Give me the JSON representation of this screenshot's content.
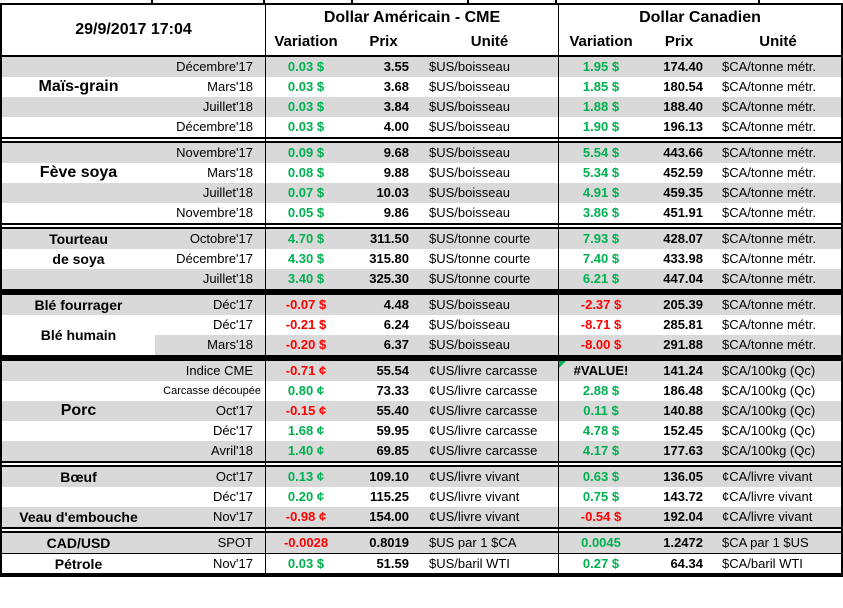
{
  "meta": {
    "timestamp": "29/9/2017 17:04"
  },
  "header": {
    "us_title": "Dollar Américain - CME",
    "ca_title": "Dollar Canadien",
    "col_variation": "Variation",
    "col_prix": "Prix",
    "col_unite": "Unité"
  },
  "colors": {
    "green": "#00B050",
    "red": "#FF0000",
    "band": "#D9D9D9"
  },
  "groups": [
    {
      "rows": [
        {
          "cat": "",
          "month": "Décembre'17",
          "shade": true,
          "us": {
            "var": "0.03 $",
            "dir": "up",
            "prix": "3.55",
            "unit": "$US/boisseau"
          },
          "ca": {
            "var": "1.95 $",
            "dir": "up",
            "prix": "174.40",
            "unit": "$CA/tonne métr."
          }
        },
        {
          "cat": "Maïs-grain",
          "cat_size": "lg",
          "month": "Mars'18",
          "shade": false,
          "us": {
            "var": "0.03 $",
            "dir": "up",
            "prix": "3.68",
            "unit": "$US/boisseau"
          },
          "ca": {
            "var": "1.85 $",
            "dir": "up",
            "prix": "180.54",
            "unit": "$CA/tonne métr."
          }
        },
        {
          "cat": "",
          "month": "Juillet'18",
          "shade": true,
          "us": {
            "var": "0.03 $",
            "dir": "up",
            "prix": "3.84",
            "unit": "$US/boisseau"
          },
          "ca": {
            "var": "1.88 $",
            "dir": "up",
            "prix": "188.40",
            "unit": "$CA/tonne métr."
          }
        },
        {
          "cat": "",
          "month": "Décembre'18",
          "shade": false,
          "us": {
            "var": "0.03 $",
            "dir": "up",
            "prix": "4.00",
            "unit": "$US/boisseau"
          },
          "ca": {
            "var": "1.90 $",
            "dir": "up",
            "prix": "196.13",
            "unit": "$CA/tonne métr."
          }
        }
      ]
    },
    {
      "rows": [
        {
          "cat": "",
          "month": "Novembre'17",
          "shade": true,
          "us": {
            "var": "0.09 $",
            "dir": "up",
            "prix": "9.68",
            "unit": "$US/boisseau"
          },
          "ca": {
            "var": "5.54 $",
            "dir": "up",
            "prix": "443.66",
            "unit": "$CA/tonne métr."
          }
        },
        {
          "cat": "Fève soya",
          "cat_size": "lg",
          "month": "Mars'18",
          "shade": false,
          "us": {
            "var": "0.08 $",
            "dir": "up",
            "prix": "9.88",
            "unit": "$US/boisseau"
          },
          "ca": {
            "var": "5.34 $",
            "dir": "up",
            "prix": "452.59",
            "unit": "$CA/tonne métr."
          }
        },
        {
          "cat": "",
          "month": "Juillet'18",
          "shade": true,
          "us": {
            "var": "0.07 $",
            "dir": "up",
            "prix": "10.03",
            "unit": "$US/boisseau"
          },
          "ca": {
            "var": "4.91 $",
            "dir": "up",
            "prix": "459.35",
            "unit": "$CA/tonne métr."
          }
        },
        {
          "cat": "",
          "month": "Novembre'18",
          "shade": false,
          "us": {
            "var": "0.05 $",
            "dir": "up",
            "prix": "9.86",
            "unit": "$US/boisseau"
          },
          "ca": {
            "var": "3.86 $",
            "dir": "up",
            "prix": "451.91",
            "unit": "$CA/tonne métr."
          }
        }
      ]
    },
    {
      "rows": [
        {
          "cat": "Tourteau",
          "month": "Octobre'17",
          "shade": true,
          "us": {
            "var": "4.70 $",
            "dir": "up",
            "prix": "311.50",
            "unit": "$US/tonne courte"
          },
          "ca": {
            "var": "7.93 $",
            "dir": "up",
            "prix": "428.07",
            "unit": "$CA/tonne métr."
          }
        },
        {
          "cat": "de soya",
          "month": "Décembre'17",
          "shade": false,
          "us": {
            "var": "4.30 $",
            "dir": "up",
            "prix": "315.80",
            "unit": "$US/tonne courte"
          },
          "ca": {
            "var": "7.40 $",
            "dir": "up",
            "prix": "433.98",
            "unit": "$CA/tonne métr."
          }
        },
        {
          "cat": "",
          "month": "Juillet'18",
          "shade": true,
          "us": {
            "var": "3.40 $",
            "dir": "up",
            "prix": "325.30",
            "unit": "$US/tonne courte"
          },
          "ca": {
            "var": "6.21 $",
            "dir": "up",
            "prix": "447.04",
            "unit": "$CA/tonne métr."
          }
        }
      ]
    },
    {
      "sep_thick": true,
      "rows": [
        {
          "cat": "Blé fourrager",
          "month": "Déc'17",
          "shade": true,
          "us": {
            "var": "-0.07 $",
            "dir": "down",
            "prix": "4.48",
            "unit": "$US/boisseau"
          },
          "ca": {
            "var": "-2.37 $",
            "dir": "down",
            "prix": "205.39",
            "unit": "$CA/tonne métr."
          }
        },
        {
          "cat": "Blé humain",
          "cat_span2": true,
          "month": "Déc'17",
          "shade": false,
          "us": {
            "var": "-0.21 $",
            "dir": "down",
            "prix": "6.24",
            "unit": "$US/boisseau"
          },
          "ca": {
            "var": "-8.71 $",
            "dir": "down",
            "prix": "285.81",
            "unit": "$CA/tonne métr."
          }
        },
        {
          "cat": "",
          "cat_white": true,
          "month": "Mars'18",
          "shade": true,
          "us": {
            "var": "-0.20 $",
            "dir": "down",
            "prix": "6.37",
            "unit": "$US/boisseau"
          },
          "ca": {
            "var": "-8.00 $",
            "dir": "down",
            "prix": "291.88",
            "unit": "$CA/tonne métr."
          }
        }
      ]
    },
    {
      "sep_thick": true,
      "rows": [
        {
          "cat": "",
          "month": "Indice CME",
          "shade": true,
          "us": {
            "var": "-0.71 ¢",
            "dir": "down",
            "prix": "55.54",
            "unit": "¢US/livre carcasse"
          },
          "ca": {
            "var": "#VALUE!",
            "dir": "err",
            "prix": "141.24",
            "unit": "$CA/100kg (Qc)"
          }
        },
        {
          "cat": "",
          "month": "Carcasse découpée",
          "month_small": true,
          "shade": false,
          "us": {
            "var": "0.80 ¢",
            "dir": "up",
            "prix": "73.33",
            "unit": "¢US/livre carcasse"
          },
          "ca": {
            "var": "2.88 $",
            "dir": "up",
            "prix": "186.48",
            "unit": "$CA/100kg (Qc)"
          }
        },
        {
          "cat": "Porc",
          "cat_size": "lg",
          "month": "Oct'17",
          "shade": true,
          "us": {
            "var": "-0.15 ¢",
            "dir": "down",
            "prix": "55.40",
            "unit": "¢US/livre carcasse"
          },
          "ca": {
            "var": "0.11 $",
            "dir": "up",
            "prix": "140.88",
            "unit": "$CA/100kg (Qc)"
          }
        },
        {
          "cat": "",
          "month": "Déc'17",
          "shade": false,
          "us": {
            "var": "1.68 ¢",
            "dir": "up",
            "prix": "59.95",
            "unit": "¢US/livre carcasse"
          },
          "ca": {
            "var": "4.78 $",
            "dir": "up",
            "prix": "152.45",
            "unit": "$CA/100kg (Qc)"
          }
        },
        {
          "cat": "",
          "month": "Avril'18",
          "shade": true,
          "us": {
            "var": "1.40 ¢",
            "dir": "up",
            "prix": "69.85",
            "unit": "¢US/livre carcasse"
          },
          "ca": {
            "var": "4.17 $",
            "dir": "up",
            "prix": "177.63",
            "unit": "$CA/100kg (Qc)"
          }
        }
      ]
    },
    {
      "rows": [
        {
          "cat": "Bœuf",
          "month": "Oct'17",
          "shade": true,
          "us": {
            "var": "0.13 ¢",
            "dir": "up",
            "prix": "109.10",
            "unit": "¢US/livre vivant"
          },
          "ca": {
            "var": "0.63 $",
            "dir": "up",
            "prix": "136.05",
            "unit": "¢CA/livre vivant"
          }
        },
        {
          "cat": "",
          "month": "Déc'17",
          "shade": false,
          "us": {
            "var": "0.20 ¢",
            "dir": "up",
            "prix": "115.25",
            "unit": "¢US/livre vivant"
          },
          "ca": {
            "var": "0.75 $",
            "dir": "up",
            "prix": "143.72",
            "unit": "¢CA/livre vivant"
          }
        },
        {
          "cat": "Veau d'embouche",
          "month": "Nov'17",
          "shade": true,
          "us": {
            "var": "-0.98 ¢",
            "dir": "down",
            "prix": "154.00",
            "unit": "¢US/livre vivant"
          },
          "ca": {
            "var": "-0.54 $",
            "dir": "down",
            "prix": "192.04",
            "unit": "¢CA/livre vivant"
          }
        }
      ]
    },
    {
      "rows": [
        {
          "cat": "CAD/USD",
          "month": "SPOT",
          "shade": true,
          "us": {
            "var": "-0.0028",
            "dir": "down",
            "prix": "0.8019",
            "unit": "$US par 1 $CA"
          },
          "ca": {
            "var": "0.0045",
            "dir": "up",
            "prix": "1.2472",
            "unit": "$CA par 1 $US"
          }
        },
        {
          "cat": "Pétrole",
          "month": "Nov'17",
          "shade": false,
          "divider_top": true,
          "us": {
            "var": "0.03 $",
            "dir": "up",
            "prix": "51.59",
            "unit": "$US/baril WTI"
          },
          "ca": {
            "var": "0.27 $",
            "dir": "up",
            "prix": "64.34",
            "unit": "$CA/baril WTI"
          }
        }
      ]
    }
  ]
}
